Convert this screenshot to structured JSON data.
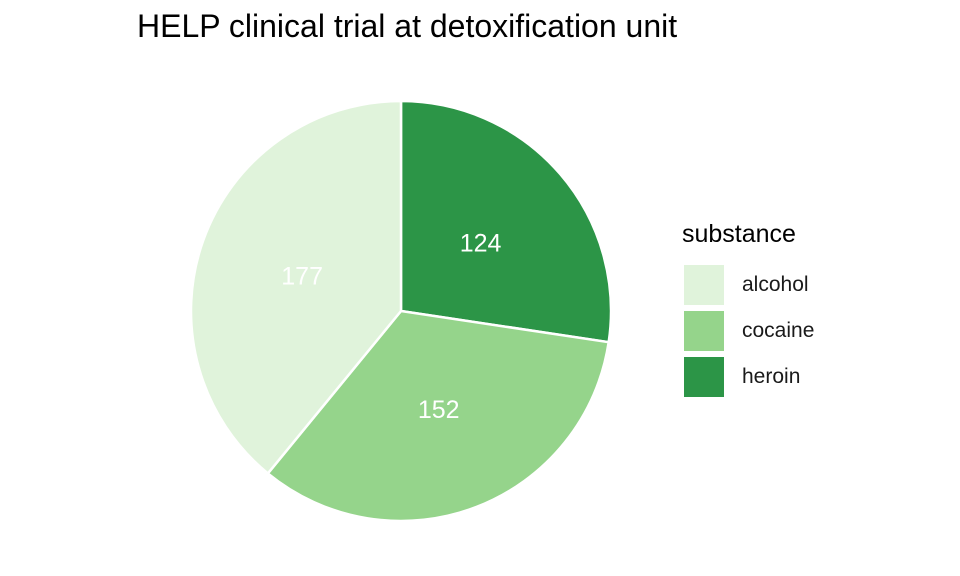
{
  "chart_data": {
    "type": "pie",
    "title": "HELP clinical trial at detoxification unit",
    "legend_title": "substance",
    "legend_position": "right",
    "categories": [
      "alcohol",
      "cocaine",
      "heroin"
    ],
    "values": [
      177,
      152,
      124
    ],
    "colors": [
      "#e0f3db",
      "#95d48b",
      "#2c9547"
    ],
    "label_color": "#ffffff"
  }
}
